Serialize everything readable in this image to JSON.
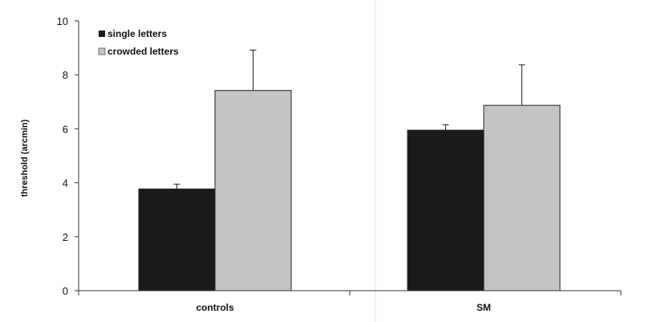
{
  "chart_data": {
    "type": "bar",
    "title": "",
    "xlabel": "",
    "ylabel": "threshold (arcmin)",
    "ylim": [
      0,
      10
    ],
    "yticks": [
      "0",
      "2",
      "4",
      "6",
      "8",
      "10"
    ],
    "categories": [
      "controls",
      "SM"
    ],
    "grid": false,
    "legend_position": "top-left",
    "series": [
      {
        "name": "single letters",
        "color": "#1a1a1a",
        "values": [
          3.77,
          5.95
        ],
        "error_upper": [
          0.18,
          0.2
        ]
      },
      {
        "name": "crowded letters",
        "color": "#c4c4c4",
        "values": [
          7.42,
          6.87
        ],
        "error_upper": [
          1.5,
          1.5
        ]
      }
    ]
  }
}
